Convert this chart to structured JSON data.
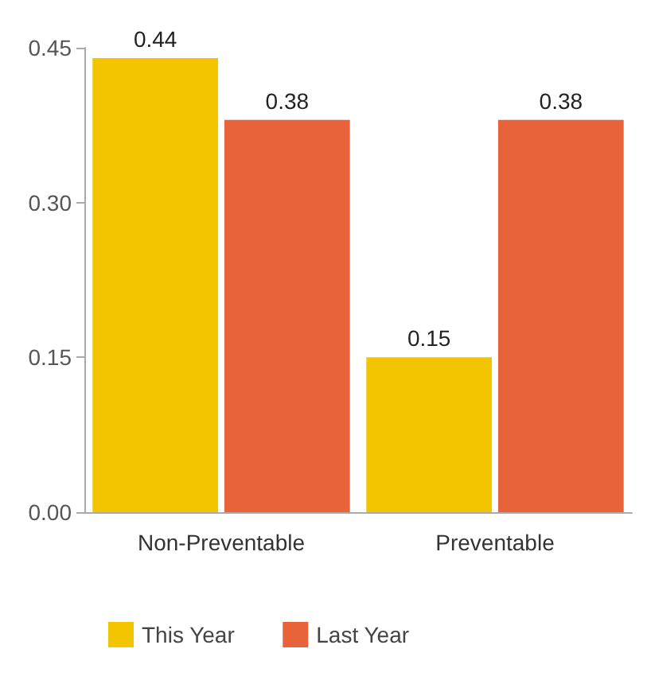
{
  "chart_data": {
    "type": "bar",
    "categories": [
      "Non-Preventable",
      "Preventable"
    ],
    "series": [
      {
        "name": "This Year",
        "color": "#f2c500",
        "values": [
          0.44,
          0.15
        ]
      },
      {
        "name": "Last Year",
        "color": "#e8623a",
        "values": [
          0.38,
          0.38
        ]
      }
    ],
    "ylim": [
      0,
      0.45
    ],
    "yticks": [
      {
        "value": 0,
        "label": "0.00"
      },
      0.15,
      {
        "value": 0.3,
        "label": "0.30"
      },
      0.45
    ],
    "data_labels": true,
    "grid": false,
    "legend": "bottom"
  }
}
